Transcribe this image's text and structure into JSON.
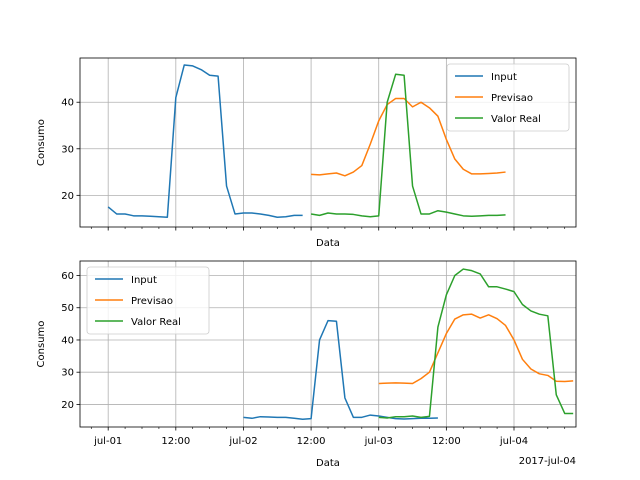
{
  "chart_data": [
    {
      "type": "line",
      "xlabel": "Data",
      "ylabel": "Consumo",
      "x_units": "hours since 2017-07-01 00:00",
      "xlim": [
        -5,
        83
      ],
      "ylim": [
        13.2,
        49.5
      ],
      "grid": true,
      "legend_position": "top-right",
      "x_tick_labels": [],
      "y_ticks": [
        20,
        30,
        40
      ],
      "y_tick_labels": [
        "20",
        "30",
        "40"
      ],
      "series": [
        {
          "name": "Input",
          "color": "#1f77b4",
          "points": [
            [
              0,
              17.5
            ],
            [
              1.5,
              16.0
            ],
            [
              3,
              16.0
            ],
            [
              4.5,
              15.6
            ],
            [
              6,
              15.6
            ],
            [
              7.5,
              15.5
            ],
            [
              9,
              15.4
            ],
            [
              10.5,
              15.3
            ],
            [
              12,
              41.0
            ],
            [
              13.5,
              48.0
            ],
            [
              15,
              47.8
            ],
            [
              16.5,
              47.0
            ],
            [
              18,
              45.8
            ],
            [
              19.5,
              45.6
            ],
            [
              21,
              22.0
            ],
            [
              22.5,
              16.0
            ],
            [
              24,
              16.2
            ],
            [
              25.5,
              16.2
            ],
            [
              27,
              16.0
            ],
            [
              28.5,
              15.7
            ],
            [
              30,
              15.3
            ],
            [
              31.5,
              15.4
            ],
            [
              33,
              15.7
            ],
            [
              34.5,
              15.7
            ]
          ]
        },
        {
          "name": "Previsao",
          "color": "#ff7f0e",
          "points": [
            [
              36,
              24.5
            ],
            [
              37.5,
              24.4
            ],
            [
              39,
              24.6
            ],
            [
              40.5,
              24.8
            ],
            [
              42,
              24.2
            ],
            [
              43.5,
              25.0
            ],
            [
              45,
              26.4
            ],
            [
              46.5,
              31.0
            ],
            [
              48,
              36.0
            ],
            [
              49.5,
              39.5
            ],
            [
              51,
              40.8
            ],
            [
              52.5,
              40.8
            ],
            [
              54,
              39.0
            ],
            [
              55.5,
              40.0
            ],
            [
              57,
              38.8
            ],
            [
              58.5,
              37.0
            ],
            [
              60,
              32.0
            ],
            [
              61.5,
              27.8
            ],
            [
              63,
              25.6
            ],
            [
              64.5,
              24.6
            ],
            [
              66,
              24.6
            ],
            [
              67.5,
              24.7
            ],
            [
              69,
              24.8
            ],
            [
              70.5,
              25.0
            ]
          ]
        },
        {
          "name": "Valor Real",
          "color": "#2ca02c",
          "points": [
            [
              36,
              16.0
            ],
            [
              37.5,
              15.7
            ],
            [
              39,
              16.2
            ],
            [
              40.5,
              16.0
            ],
            [
              42,
              16.0
            ],
            [
              43.5,
              15.9
            ],
            [
              45,
              15.6
            ],
            [
              46.5,
              15.4
            ],
            [
              48,
              15.6
            ],
            [
              49.5,
              40.0
            ],
            [
              51,
              46.0
            ],
            [
              52.5,
              45.8
            ],
            [
              54,
              22.0
            ],
            [
              55.5,
              16.0
            ],
            [
              57,
              16.0
            ],
            [
              58.5,
              16.7
            ],
            [
              60,
              16.4
            ],
            [
              61.5,
              16.0
            ],
            [
              63,
              15.6
            ],
            [
              64.5,
              15.5
            ],
            [
              66,
              15.6
            ],
            [
              67.5,
              15.7
            ],
            [
              69,
              15.7
            ],
            [
              70.5,
              15.8
            ]
          ]
        }
      ]
    },
    {
      "type": "line",
      "xlabel": "Data",
      "ylabel": "Consumo",
      "x_units": "hours since 2017-07-01 00:00",
      "xlim": [
        -5,
        83
      ],
      "ylim": [
        13.0,
        64.5
      ],
      "grid": true,
      "legend_position": "top-left",
      "x_ticks": [
        0,
        12,
        24,
        36,
        48,
        60,
        72
      ],
      "x_tick_labels": [
        "jul-01",
        "12:00",
        "jul-02",
        "12:00",
        "jul-03",
        "12:00",
        "jul-04"
      ],
      "x_offset_label": "2017-jul-04",
      "y_ticks": [
        20,
        30,
        40,
        50,
        60
      ],
      "y_tick_labels": [
        "20",
        "30",
        "40",
        "50",
        "60"
      ],
      "series": [
        {
          "name": "Input",
          "color": "#1f77b4",
          "points": [
            [
              24,
              16.0
            ],
            [
              25.5,
              15.7
            ],
            [
              27,
              16.2
            ],
            [
              28.5,
              16.1
            ],
            [
              30,
              16.0
            ],
            [
              31.5,
              16.0
            ],
            [
              33,
              15.7
            ],
            [
              34.5,
              15.4
            ],
            [
              36,
              15.6
            ],
            [
              37.5,
              40.0
            ],
            [
              39,
              46.0
            ],
            [
              40.5,
              45.8
            ],
            [
              42,
              22.0
            ],
            [
              43.5,
              16.0
            ],
            [
              45,
              16.0
            ],
            [
              46.5,
              16.7
            ],
            [
              48,
              16.4
            ],
            [
              49.5,
              16.0
            ],
            [
              51,
              15.6
            ],
            [
              52.5,
              15.5
            ],
            [
              54,
              15.6
            ],
            [
              55.5,
              15.7
            ],
            [
              57,
              15.7
            ],
            [
              58.5,
              15.8
            ]
          ]
        },
        {
          "name": "Previsao",
          "color": "#ff7f0e",
          "points": [
            [
              48,
              26.5
            ],
            [
              49.5,
              26.6
            ],
            [
              51,
              26.7
            ],
            [
              52.5,
              26.6
            ],
            [
              54,
              26.5
            ],
            [
              55.5,
              28.0
            ],
            [
              57,
              30.0
            ],
            [
              58.5,
              36.0
            ],
            [
              60,
              42.0
            ],
            [
              61.5,
              46.5
            ],
            [
              63,
              47.8
            ],
            [
              64.5,
              48.0
            ],
            [
              66,
              46.8
            ],
            [
              67.5,
              47.8
            ],
            [
              69,
              46.6
            ],
            [
              70.5,
              44.5
            ],
            [
              72,
              40.0
            ],
            [
              73.5,
              34.0
            ],
            [
              75,
              31.0
            ],
            [
              76.5,
              29.5
            ],
            [
              78,
              29.0
            ],
            [
              79.5,
              27.2
            ],
            [
              81,
              27.1
            ],
            [
              82.5,
              27.3
            ]
          ]
        },
        {
          "name": "Valor Real",
          "color": "#2ca02c",
          "points": [
            [
              48,
              16.0
            ],
            [
              49.5,
              15.8
            ],
            [
              51,
              16.2
            ],
            [
              52.5,
              16.2
            ],
            [
              54,
              16.4
            ],
            [
              55.5,
              16.0
            ],
            [
              57,
              16.3
            ],
            [
              58.5,
              44.0
            ],
            [
              60,
              54.0
            ],
            [
              61.5,
              60.0
            ],
            [
              63,
              62.0
            ],
            [
              64.5,
              61.5
            ],
            [
              66,
              60.5
            ],
            [
              67.5,
              56.5
            ],
            [
              69,
              56.5
            ],
            [
              70.5,
              55.8
            ],
            [
              72,
              55.0
            ],
            [
              73.5,
              51.0
            ],
            [
              75,
              49.0
            ],
            [
              76.5,
              48.0
            ],
            [
              78,
              47.5
            ],
            [
              79.5,
              23.0
            ],
            [
              81,
              17.2
            ],
            [
              82.5,
              17.2
            ]
          ]
        }
      ]
    }
  ]
}
